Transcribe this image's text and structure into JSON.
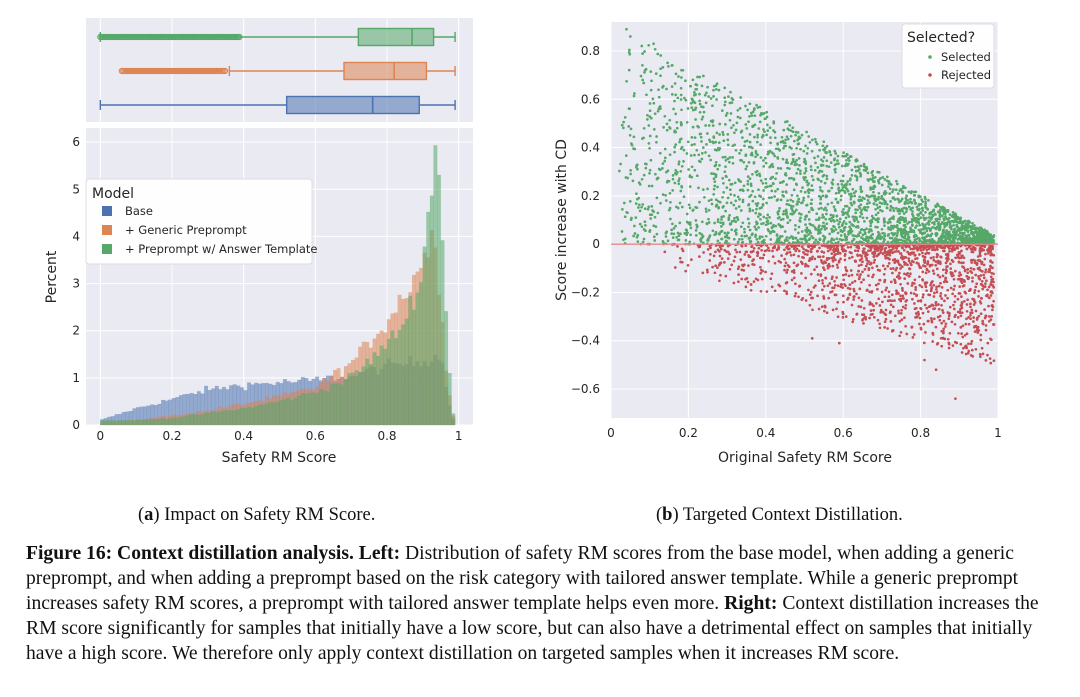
{
  "colors": {
    "base": "#4c72b0",
    "generic": "#dd8452",
    "template": "#55a868",
    "selected": "#55a868",
    "rejected": "#c44e52",
    "panel_bg": "#eaeaf2"
  },
  "left": {
    "box_plot": [
      {
        "name": "+ Preprompt w/ Answer Template",
        "color": "#55a868",
        "whisker_min": 0.0,
        "q1": 0.72,
        "median": 0.87,
        "q3": 0.93,
        "whisker_max": 0.99,
        "outlier_range": [
          0.0,
          0.39
        ]
      },
      {
        "name": "+ Generic Preprompt",
        "color": "#dd8452",
        "whisker_min": 0.36,
        "q1": 0.68,
        "median": 0.82,
        "q3": 0.91,
        "whisker_max": 0.99,
        "outlier_range": [
          0.06,
          0.35
        ]
      },
      {
        "name": "Base",
        "color": "#4c72b0",
        "whisker_min": 0.0,
        "q1": 0.52,
        "median": 0.76,
        "q3": 0.89,
        "whisker_max": 0.99,
        "outlier_range": null
      }
    ],
    "chart_data": {
      "type": "histogram",
      "xlabel": "Safety RM Score",
      "ylabel": "Percent",
      "xlim": [
        -0.04,
        1.04
      ],
      "ylim": [
        0,
        6.3
      ],
      "xticks": [
        "0",
        "0.2",
        "0.4",
        "0.6",
        "0.8",
        "1"
      ],
      "xtick_values": [
        0,
        0.2,
        0.4,
        0.6,
        0.8,
        1
      ],
      "yticks": [
        "0",
        "1",
        "2",
        "3",
        "4",
        "5",
        "6"
      ],
      "ytick_values": [
        0,
        1,
        2,
        3,
        4,
        5,
        6
      ],
      "legend_title": "Model",
      "legend_position": "upper-left",
      "series": [
        {
          "name": "Base",
          "color": "#4c72b0",
          "knots_x": [
            0.0,
            0.1,
            0.2,
            0.3,
            0.4,
            0.5,
            0.6,
            0.7,
            0.8,
            0.85,
            0.9,
            0.95,
            0.97,
            0.99
          ],
          "knots_y": [
            0.1,
            0.35,
            0.55,
            0.75,
            0.85,
            0.9,
            0.95,
            1.05,
            1.25,
            1.3,
            1.35,
            1.5,
            0.6,
            0.0
          ]
        },
        {
          "name": "+ Generic Preprompt",
          "color": "#dd8452",
          "knots_x": [
            0.0,
            0.1,
            0.2,
            0.3,
            0.4,
            0.5,
            0.6,
            0.7,
            0.8,
            0.85,
            0.9,
            0.93,
            0.95,
            0.97,
            0.99
          ],
          "knots_y": [
            0.05,
            0.1,
            0.2,
            0.3,
            0.45,
            0.6,
            0.8,
            1.3,
            2.2,
            2.8,
            3.5,
            4.0,
            2.8,
            0.8,
            0.0
          ]
        },
        {
          "name": "+ Preprompt w/ Answer Template",
          "color": "#55a868",
          "knots_x": [
            0.0,
            0.1,
            0.2,
            0.3,
            0.4,
            0.5,
            0.6,
            0.7,
            0.8,
            0.85,
            0.9,
            0.93,
            0.94,
            0.95,
            0.96,
            0.98,
            0.99
          ],
          "knots_y": [
            0.1,
            0.1,
            0.15,
            0.25,
            0.35,
            0.5,
            0.7,
            1.0,
            1.7,
            2.2,
            3.3,
            5.5,
            6.0,
            5.2,
            3.0,
            0.5,
            0.0
          ]
        }
      ]
    }
  },
  "right": {
    "chart_data": {
      "type": "scatter",
      "xlabel": "Original Safety RM Score",
      "ylabel": "Score increase with CD",
      "xlim": [
        0,
        1.0
      ],
      "ylim": [
        -0.72,
        0.92
      ],
      "xticks": [
        "0",
        "0.2",
        "0.4",
        "0.6",
        "0.8",
        "1"
      ],
      "xtick_values": [
        0,
        0.2,
        0.4,
        0.6,
        0.8,
        1
      ],
      "yticks": [
        "−0.6",
        "−0.4",
        "−0.2",
        "0",
        "0.2",
        "0.4",
        "0.6",
        "0.8"
      ],
      "ytick_values": [
        -0.6,
        -0.4,
        -0.2,
        0,
        0.2,
        0.4,
        0.6,
        0.8
      ],
      "reference_line_y": 0,
      "legend_title": "Selected?",
      "legend_position": "upper-right",
      "series": [
        {
          "name": "Selected",
          "color": "#55a868",
          "y_range_at_x0": [
            0,
            0.9
          ],
          "y_range_at_x1": [
            0,
            0.0
          ]
        },
        {
          "name": "Rejected",
          "color": "#c44e52",
          "y_range": [
            -0.64,
            0
          ],
          "x_range": [
            0.1,
            0.99
          ]
        }
      ]
    }
  },
  "captions": {
    "a_label": "a",
    "a_text": "Impact on Safety RM Score.",
    "b_label": "b",
    "b_text": "Targeted Context Distillation.",
    "figure_label": "Figure 16: Context distillation analysis.",
    "left_label": "Left:",
    "left_text": "Distribution of safety RM scores from the base model, when adding a generic preprompt, and when adding a preprompt based on the risk category with tailored answer template. While a generic preprompt increases safety RM scores, a preprompt with tailored answer template helps even more.",
    "right_label": "Right:",
    "right_text": "Context distillation increases the RM score significantly for samples that initially have a low score, but can also have a detrimental effect on samples that initially have a high score. We therefore only apply context distillation on targeted samples when it increases RM score."
  }
}
